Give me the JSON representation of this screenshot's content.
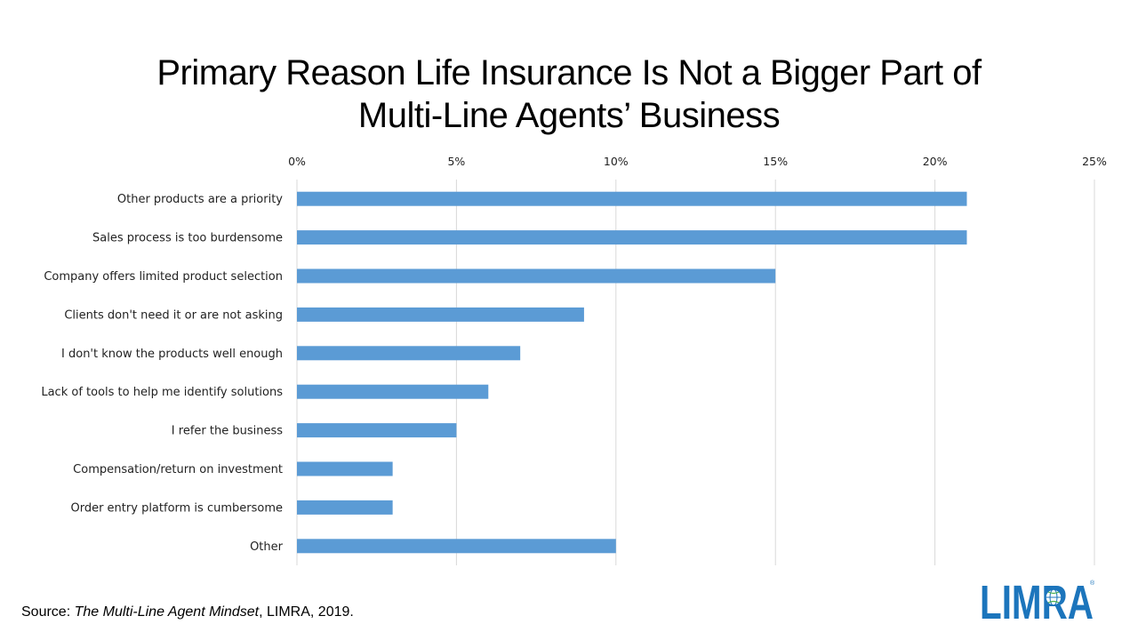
{
  "title_lines": [
    "Primary Reason Life Insurance Is Not a Bigger Part of",
    "Multi-Line Agents’ Business"
  ],
  "source": {
    "prefix": "Source: ",
    "publication": "The Multi-Line Agent Mindset",
    "suffix": ", LIMRA, 2019."
  },
  "logo": {
    "text": "LIMRA",
    "color": "#1c75bc",
    "icon": "globe-icon"
  },
  "colors": {
    "bar": "#5b9bd5",
    "grid": "#d9d9d9"
  },
  "chart_data": {
    "type": "bar",
    "orientation": "horizontal",
    "title": "Primary Reason Life Insurance Is Not a Bigger Part of Multi-Line Agents’ Business",
    "xlim": [
      0,
      25
    ],
    "x_ticks": [
      0,
      5,
      10,
      15,
      20,
      25
    ],
    "x_tick_labels": [
      "0%",
      "5%",
      "10%",
      "15%",
      "20%",
      "25%"
    ],
    "x_axis_position": "top",
    "grid": true,
    "legend": "none",
    "categories": [
      "Other products are a priority",
      "Sales process is too burdensome",
      "Company offers limited product selection",
      "Clients don't need it or are not asking",
      "I don't know the products well enough",
      "Lack of tools to help me identify solutions",
      "I refer the business",
      "Compensation/return on investment",
      "Order entry platform is cumbersome",
      "Other"
    ],
    "values": [
      21,
      21,
      15,
      9,
      7,
      6,
      5,
      3,
      3,
      10
    ]
  }
}
